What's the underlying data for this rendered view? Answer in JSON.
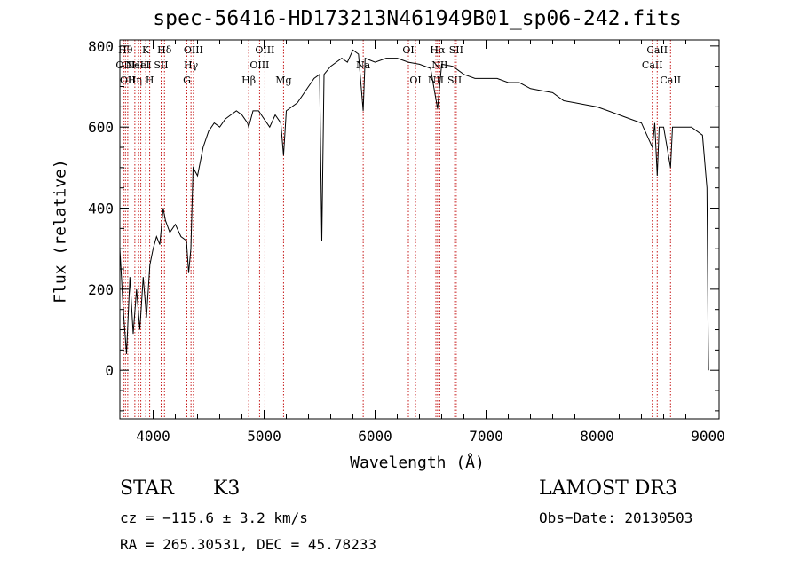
{
  "chart_data": {
    "type": "line",
    "title": "spec-56416-HD173213N461949B01_sp06-242.fits",
    "xlabel": "Wavelength (Å)",
    "ylabel": "Flux (relative)",
    "xlim": [
      3700,
      9100
    ],
    "ylim": [
      -120,
      815
    ],
    "xticks": [
      4000,
      5000,
      6000,
      7000,
      8000,
      9000
    ],
    "yticks": [
      0,
      200,
      400,
      600,
      800
    ],
    "series": [
      {
        "name": "flux",
        "points": [
          [
            3700,
            300
          ],
          [
            3730,
            150
          ],
          [
            3760,
            40
          ],
          [
            3790,
            230
          ],
          [
            3820,
            90
          ],
          [
            3850,
            200
          ],
          [
            3880,
            100
          ],
          [
            3910,
            230
          ],
          [
            3940,
            130
          ],
          [
            3970,
            260
          ],
          [
            4000,
            300
          ],
          [
            4030,
            330
          ],
          [
            4060,
            310
          ],
          [
            4090,
            400
          ],
          [
            4110,
            370
          ],
          [
            4150,
            340
          ],
          [
            4200,
            360
          ],
          [
            4250,
            330
          ],
          [
            4300,
            320
          ],
          [
            4320,
            240
          ],
          [
            4340,
            300
          ],
          [
            4360,
            500
          ],
          [
            4400,
            480
          ],
          [
            4450,
            550
          ],
          [
            4500,
            590
          ],
          [
            4550,
            610
          ],
          [
            4600,
            600
          ],
          [
            4650,
            620
          ],
          [
            4700,
            630
          ],
          [
            4750,
            640
          ],
          [
            4800,
            630
          ],
          [
            4850,
            610
          ],
          [
            4861,
            600
          ],
          [
            4900,
            640
          ],
          [
            4950,
            640
          ],
          [
            5000,
            620
          ],
          [
            5050,
            600
          ],
          [
            5100,
            630
          ],
          [
            5150,
            610
          ],
          [
            5175,
            530
          ],
          [
            5200,
            640
          ],
          [
            5300,
            660
          ],
          [
            5400,
            700
          ],
          [
            5450,
            720
          ],
          [
            5500,
            730
          ],
          [
            5520,
            320
          ],
          [
            5540,
            730
          ],
          [
            5600,
            750
          ],
          [
            5650,
            760
          ],
          [
            5700,
            770
          ],
          [
            5750,
            760
          ],
          [
            5800,
            790
          ],
          [
            5850,
            780
          ],
          [
            5893,
            640
          ],
          [
            5910,
            770
          ],
          [
            6000,
            760
          ],
          [
            6100,
            770
          ],
          [
            6200,
            770
          ],
          [
            6300,
            760
          ],
          [
            6400,
            755
          ],
          [
            6500,
            745
          ],
          [
            6563,
            645
          ],
          [
            6600,
            755
          ],
          [
            6700,
            750
          ],
          [
            6800,
            730
          ],
          [
            6900,
            720
          ],
          [
            7000,
            720
          ],
          [
            7100,
            720
          ],
          [
            7200,
            710
          ],
          [
            7300,
            710
          ],
          [
            7400,
            695
          ],
          [
            7500,
            690
          ],
          [
            7600,
            685
          ],
          [
            7700,
            665
          ],
          [
            7800,
            660
          ],
          [
            7900,
            655
          ],
          [
            8000,
            650
          ],
          [
            8100,
            640
          ],
          [
            8200,
            630
          ],
          [
            8300,
            620
          ],
          [
            8400,
            610
          ],
          [
            8498,
            550
          ],
          [
            8520,
            610
          ],
          [
            8542,
            480
          ],
          [
            8560,
            600
          ],
          [
            8600,
            600
          ],
          [
            8662,
            500
          ],
          [
            8680,
            600
          ],
          [
            8750,
            600
          ],
          [
            8850,
            600
          ],
          [
            8950,
            580
          ],
          [
            8990,
            450
          ],
          [
            9000,
            120
          ],
          [
            9005,
            0
          ]
        ]
      }
    ],
    "lines": [
      {
        "wl": 3734,
        "label": "OII",
        "row": 1
      },
      {
        "wl": 3750,
        "label": "Hθ",
        "row": 0
      },
      {
        "wl": 3771,
        "label": "OII",
        "row": 2
      },
      {
        "wl": 3835,
        "label": "Hη",
        "row": 2
      },
      {
        "wl": 3869,
        "label": "NeIII",
        "row": 1
      },
      {
        "wl": 3889,
        "label": "HeI",
        "row": 1
      },
      {
        "wl": 3933,
        "label": "K",
        "row": 0
      },
      {
        "wl": 3969,
        "label": "H",
        "row": 2
      },
      {
        "wl": 4072,
        "label": "SII",
        "row": 1
      },
      {
        "wl": 4102,
        "label": "Hδ",
        "row": 0
      },
      {
        "wl": 4304,
        "label": "G",
        "row": 2
      },
      {
        "wl": 4341,
        "label": "Hγ",
        "row": 1
      },
      {
        "wl": 4363,
        "label": "OIII",
        "row": 0
      },
      {
        "wl": 4861,
        "label": "Hβ",
        "row": 2
      },
      {
        "wl": 4959,
        "label": "OIII",
        "row": 1
      },
      {
        "wl": 5007,
        "label": "OIII",
        "row": 0
      },
      {
        "wl": 5175,
        "label": "Mg",
        "row": 2
      },
      {
        "wl": 5893,
        "label": "Na",
        "row": 1
      },
      {
        "wl": 6300,
        "label": "OI",
        "row": 0
      },
      {
        "wl": 6364,
        "label": "OI",
        "row": 2
      },
      {
        "wl": 6548,
        "label": "NII",
        "row": 2
      },
      {
        "wl": 6563,
        "label": "Hα",
        "row": 0
      },
      {
        "wl": 6583,
        "label": "NII",
        "row": 1
      },
      {
        "wl": 6717,
        "label": "SII",
        "row": 2
      },
      {
        "wl": 6731,
        "label": "SII",
        "row": 0
      },
      {
        "wl": 8498,
        "label": "CaII",
        "row": 1
      },
      {
        "wl": 8542,
        "label": "CaII",
        "row": 0
      },
      {
        "wl": 8662,
        "label": "CaII",
        "row": 2
      }
    ],
    "colors": {
      "line": "#000000",
      "marker": "#c00000"
    }
  },
  "info": {
    "object_class": "STAR",
    "subclass": "K3",
    "survey": "LAMOST DR3",
    "cz": "cz = −115.6 ± 3.2 km/s",
    "obs_date": "Obs−Date: 20130503",
    "coords": "RA = 265.30531, DEC =  45.78233"
  }
}
